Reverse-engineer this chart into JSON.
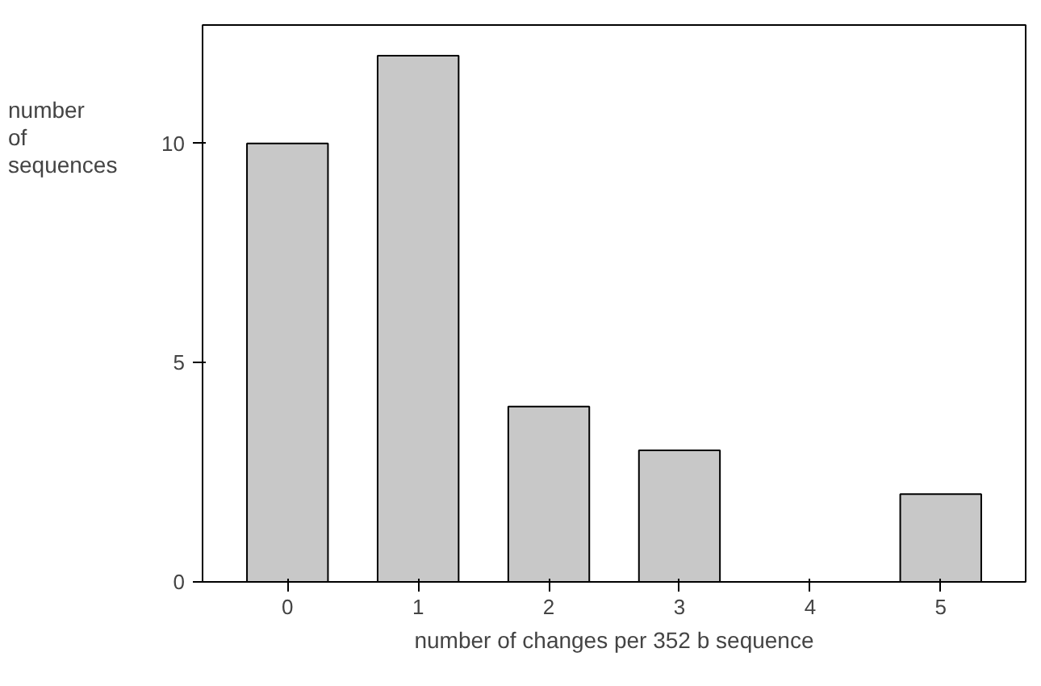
{
  "chart_data": {
    "type": "bar",
    "xlabel": "number of changes per 352 b sequence",
    "ylabel": "number of sequences",
    "categories": [
      "0",
      "1",
      "2",
      "3",
      "4",
      "5"
    ],
    "values": [
      10,
      12,
      4,
      3,
      0,
      2
    ],
    "color": "#c8c8c8",
    "ylim": [
      0,
      12.7
    ],
    "yticks": [
      0,
      5,
      10
    ],
    "grid": false
  }
}
